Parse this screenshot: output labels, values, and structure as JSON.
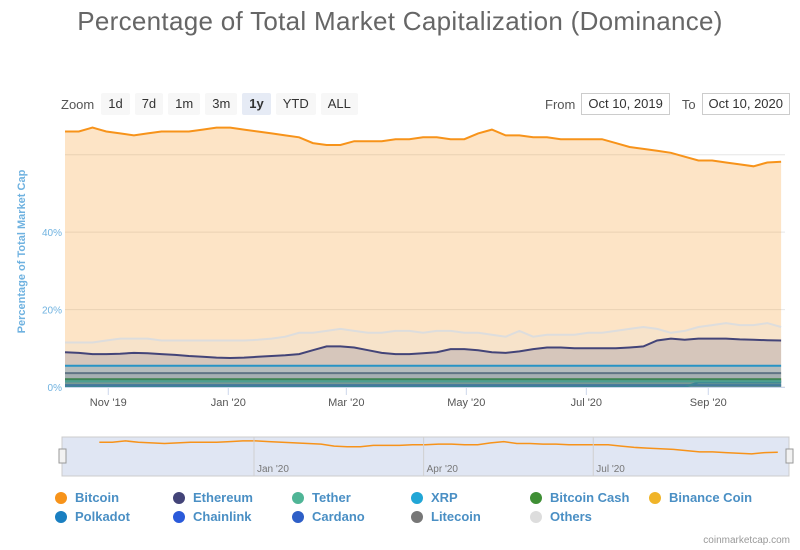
{
  "title": "Percentage of Total Market Capitalization (Dominance)",
  "zoom": {
    "label": "Zoom",
    "buttons": [
      "1d",
      "7d",
      "1m",
      "3m",
      "1y",
      "YTD",
      "ALL"
    ],
    "active": "1y"
  },
  "range": {
    "from_label": "From",
    "from_value": "Oct 10, 2019",
    "to_label": "To",
    "to_value": "Oct 10, 2020"
  },
  "credit": "coinmarketcap.com",
  "colors": {
    "axis_label": "#6fb2e0",
    "navigator_mask": "#ccd6eb"
  },
  "chart_data": {
    "type": "area",
    "title": "Percentage of Total Market Capitalization (Dominance)",
    "ylabel": "Percentage of Total Market Cap",
    "xlabel": "",
    "x_range": [
      "2019-10-10",
      "2020-10-10"
    ],
    "ylim": [
      0,
      70
    ],
    "y_ticks": [
      "0%",
      "20%",
      "40%"
    ],
    "x_ticks": [
      {
        "label": "Nov '19",
        "date": "2019-11-01"
      },
      {
        "label": "Jan '20",
        "date": "2020-01-01"
      },
      {
        "label": "Mar '20",
        "date": "2020-03-01"
      },
      {
        "label": "May '20",
        "date": "2020-05-01"
      },
      {
        "label": "Jul '20",
        "date": "2020-07-01"
      },
      {
        "label": "Sep '20",
        "date": "2020-09-01"
      }
    ],
    "navigator_ticks": [
      {
        "label": "Jan '20",
        "date": "2020-01-01"
      },
      {
        "label": "Apr '20",
        "date": "2020-04-01"
      },
      {
        "label": "Jul '20",
        "date": "2020-07-01"
      }
    ],
    "grid": true,
    "legend_position": "bottom",
    "dates": [
      "2019-10-10",
      "2019-10-17",
      "2019-10-24",
      "2019-10-31",
      "2019-11-07",
      "2019-11-14",
      "2019-11-21",
      "2019-11-28",
      "2019-12-05",
      "2019-12-12",
      "2019-12-19",
      "2019-12-26",
      "2020-01-02",
      "2020-01-09",
      "2020-01-16",
      "2020-01-23",
      "2020-01-30",
      "2020-02-06",
      "2020-02-13",
      "2020-02-20",
      "2020-02-27",
      "2020-03-05",
      "2020-03-12",
      "2020-03-19",
      "2020-03-26",
      "2020-04-02",
      "2020-04-09",
      "2020-04-16",
      "2020-04-23",
      "2020-04-30",
      "2020-05-07",
      "2020-05-14",
      "2020-05-21",
      "2020-05-28",
      "2020-06-04",
      "2020-06-11",
      "2020-06-18",
      "2020-06-25",
      "2020-07-02",
      "2020-07-09",
      "2020-07-16",
      "2020-07-23",
      "2020-07-30",
      "2020-08-06",
      "2020-08-13",
      "2020-08-20",
      "2020-08-27",
      "2020-09-03",
      "2020-09-10",
      "2020-09-17",
      "2020-09-24",
      "2020-10-01",
      "2020-10-08"
    ],
    "series": [
      {
        "name": "Others",
        "color": "#dddddd",
        "values": [
          11.5,
          11.5,
          11.5,
          12,
          12.5,
          12.5,
          12.5,
          12,
          12,
          12,
          12,
          12,
          12,
          12,
          12.2,
          12.5,
          13,
          14,
          14,
          14.5,
          15,
          14.5,
          14,
          14,
          14.5,
          14.5,
          14,
          14.5,
          14.5,
          14,
          14,
          13.5,
          13,
          14.5,
          13,
          13.5,
          13.5,
          13.5,
          14,
          14,
          14.5,
          15,
          15.5,
          15,
          14,
          14.5,
          15.5,
          16,
          16.5,
          16,
          16,
          16.5,
          15.5
        ]
      },
      {
        "name": "Litecoin",
        "color": "#777777",
        "values": [
          3.6,
          3.6,
          3.6,
          3.6,
          3.6,
          3.6,
          3.6,
          3.6,
          3.6,
          3.6,
          3.6,
          3.6,
          3.6,
          3.6,
          3.6,
          3.6,
          3.6,
          3.6,
          3.6,
          3.6,
          3.6,
          3.6,
          3.6,
          3.6,
          3.6,
          3.6,
          3.6,
          3.6,
          3.6,
          3.6,
          3.6,
          3.6,
          3.6,
          3.6,
          3.6,
          3.6,
          3.6,
          3.6,
          3.6,
          3.6,
          3.6,
          3.6,
          3.6,
          3.6,
          3.6,
          3.6,
          3.6,
          3.6,
          3.6,
          3.6,
          3.6,
          3.6,
          3.6
        ]
      },
      {
        "name": "Cardano",
        "color": "#2e5fc7",
        "values": [
          1.5,
          1.5,
          1.5,
          1.5,
          1.5,
          1.5,
          1.5,
          1.5,
          1.5,
          1.5,
          1.5,
          1.5,
          1.5,
          1.5,
          1.5,
          1.5,
          1.5,
          1.5,
          1.5,
          1.5,
          1.5,
          1.5,
          1.5,
          1.5,
          1.5,
          1.5,
          1.5,
          1.5,
          1.5,
          1.5,
          1.5,
          1.5,
          1.5,
          1.5,
          1.5,
          1.5,
          1.5,
          1.5,
          1.5,
          1.5,
          1.5,
          1.5,
          1.5,
          1.5,
          1.5,
          1.5,
          1.5,
          1.5,
          1.5,
          1.5,
          1.5,
          1.5,
          1.5
        ]
      },
      {
        "name": "Chainlink",
        "color": "#2a5ada",
        "values": [
          0.5,
          0.5,
          0.5,
          0.5,
          0.5,
          0.5,
          0.5,
          0.5,
          0.5,
          0.5,
          0.5,
          0.5,
          0.5,
          0.5,
          0.5,
          0.5,
          0.5,
          0.5,
          0.5,
          0.5,
          0.5,
          0.5,
          0.5,
          0.5,
          0.5,
          0.5,
          0.5,
          0.5,
          0.5,
          0.5,
          0.5,
          0.5,
          0.5,
          0.5,
          0.5,
          0.5,
          0.5,
          0.5,
          0.5,
          0.5,
          0.5,
          0.5,
          0.5,
          0.5,
          0.5,
          0.5,
          0.5,
          0.5,
          0.5,
          0.5,
          0.5,
          0.5,
          0.5
        ]
      },
      {
        "name": "Polkadot",
        "color": "#1a7fc1",
        "values": [
          0,
          0,
          0,
          0,
          0,
          0,
          0,
          0,
          0,
          0,
          0,
          0,
          0,
          0,
          0,
          0,
          0,
          0,
          0,
          0,
          0,
          0,
          0,
          0,
          0,
          0,
          0,
          0,
          0,
          0,
          0,
          0,
          0,
          0,
          0,
          0,
          0,
          0,
          0,
          0,
          0,
          0,
          0,
          0,
          0,
          0,
          1.2,
          1.2,
          1.2,
          1.2,
          1.2,
          1.2,
          1.2
        ]
      },
      {
        "name": "Binance Coin",
        "color": "#f0b429",
        "values": [
          2,
          2,
          2,
          2,
          2,
          2,
          2,
          2,
          2,
          2,
          2,
          2,
          2,
          2,
          2,
          2,
          2,
          2,
          2,
          2,
          2,
          2,
          2,
          2,
          2,
          2,
          2,
          2,
          2,
          2,
          2,
          2,
          2,
          2,
          2,
          2,
          2,
          2,
          2,
          2,
          2,
          2,
          2,
          2,
          2,
          2,
          2,
          2,
          2,
          2,
          2,
          2,
          2
        ]
      },
      {
        "name": "Bitcoin Cash",
        "color": "#3f8f35",
        "values": [
          2,
          2,
          2,
          2,
          2,
          2,
          2,
          2,
          2,
          2,
          2,
          2,
          2,
          2,
          2,
          2,
          2,
          2,
          2,
          2,
          2,
          2,
          2,
          2,
          2,
          2,
          2,
          2,
          2,
          2,
          2,
          2,
          2,
          2,
          2,
          2,
          2,
          2,
          2,
          2,
          2,
          2,
          2,
          2,
          2,
          2,
          2,
          2,
          2,
          2,
          2,
          2,
          2
        ]
      },
      {
        "name": "XRP",
        "color": "#21a6d6",
        "values": [
          5.5,
          5.5,
          5.5,
          5.5,
          5.5,
          5.5,
          5.5,
          5.5,
          5.5,
          5.5,
          5.5,
          5.5,
          5.5,
          5.5,
          5.5,
          5.5,
          5.5,
          5.5,
          5.5,
          5.5,
          5.5,
          5.5,
          5.5,
          5.5,
          5.5,
          5.5,
          5.5,
          5.5,
          5.5,
          5.5,
          5.5,
          5.5,
          5.5,
          5.5,
          5.5,
          5.5,
          5.5,
          5.5,
          5.5,
          5.5,
          5.5,
          5.5,
          5.5,
          5.5,
          5.5,
          5.5,
          5.5,
          5.5,
          5.5,
          5.5,
          5.5,
          5.5,
          5.5
        ]
      },
      {
        "name": "Tether",
        "color": "#4fb596",
        "values": [
          1.5,
          1.5,
          1.5,
          1.5,
          1.5,
          1.5,
          1.5,
          1.5,
          1.5,
          1.5,
          1.5,
          1.5,
          1.5,
          1.5,
          1.5,
          1.5,
          1.5,
          1.5,
          1.5,
          1.5,
          1.5,
          1.5,
          1.5,
          1.5,
          1.5,
          1.5,
          1.5,
          1.5,
          1.5,
          1.5,
          1.5,
          1.5,
          1.5,
          1.5,
          1.5,
          1.5,
          1.5,
          1.5,
          1.5,
          1.5,
          1.5,
          1.5,
          1.5,
          1.5,
          1.5,
          1.5,
          1.5,
          1.5,
          1.5,
          1.5,
          1.5,
          1.5,
          1.5
        ]
      },
      {
        "name": "Ethereum",
        "color": "#434478",
        "values": [
          9,
          8.8,
          8.5,
          8.5,
          8.6,
          8.8,
          8.7,
          8.5,
          8.3,
          8,
          7.8,
          7.6,
          7.5,
          7.6,
          7.8,
          8,
          8.2,
          8.5,
          9.5,
          10.5,
          10.5,
          10.2,
          9.5,
          8.8,
          8.5,
          8.5,
          8.7,
          9,
          9.8,
          9.8,
          9.5,
          9,
          8.8,
          9.2,
          9.8,
          10.2,
          10.2,
          10,
          10,
          10,
          10,
          10.2,
          10.5,
          12,
          12.5,
          12.2,
          12.5,
          12.5,
          12.5,
          12.3,
          12.2,
          12.1,
          12
        ]
      },
      {
        "name": "Bitcoin",
        "color": "#f7931a",
        "values": [
          66,
          66,
          67,
          66,
          65.5,
          65,
          65.5,
          66,
          66,
          66,
          66.5,
          67,
          67,
          66.5,
          66,
          65.5,
          65,
          64.5,
          63,
          62.5,
          62.5,
          63.5,
          63.5,
          63.5,
          64,
          64,
          64.5,
          64.5,
          64,
          64,
          65.5,
          66.5,
          65,
          65,
          64.5,
          64.5,
          64,
          64,
          64,
          64,
          63,
          62,
          61.5,
          61,
          60.5,
          59.5,
          58.5,
          58.5,
          58,
          57.5,
          57,
          58,
          58.2
        ]
      }
    ]
  },
  "legend": {
    "row1": [
      {
        "label": "Bitcoin",
        "color": "#f7931a"
      },
      {
        "label": "Ethereum",
        "color": "#434478"
      },
      {
        "label": "Tether",
        "color": "#4fb596"
      },
      {
        "label": "XRP",
        "color": "#21a6d6"
      },
      {
        "label": "Bitcoin Cash",
        "color": "#3f8f35"
      },
      {
        "label": "Binance Coin",
        "color": "#f0b429"
      }
    ],
    "row2": [
      {
        "label": "Polkadot",
        "color": "#1a7fc1"
      },
      {
        "label": "Chainlink",
        "color": "#2a5ada"
      },
      {
        "label": "Cardano",
        "color": "#2e5fc7"
      },
      {
        "label": "Litecoin",
        "color": "#777777"
      },
      {
        "label": "Others",
        "color": "#dddddd"
      }
    ]
  }
}
